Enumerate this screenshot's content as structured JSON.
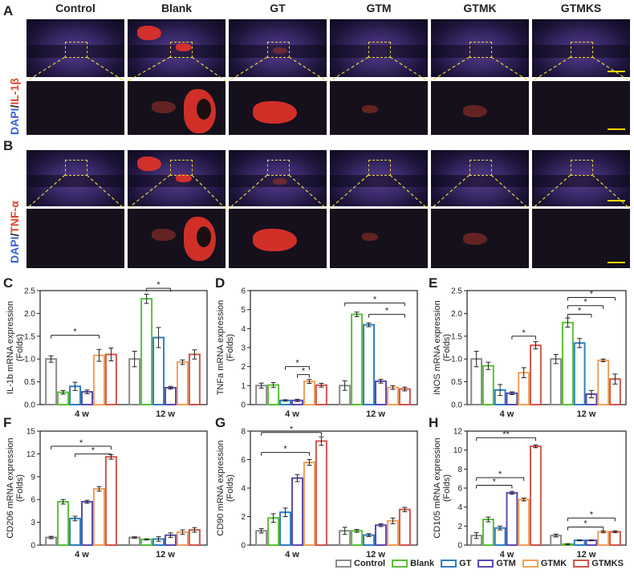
{
  "panel_letters": [
    "A",
    "B",
    "C",
    "D",
    "E",
    "F",
    "G",
    "H"
  ],
  "groups": [
    "Control",
    "Blank",
    "GT",
    "GTM",
    "GTMK",
    "GTMKS"
  ],
  "colors": [
    "#8a8a8a",
    "#5bbf3a",
    "#2f7fc1",
    "#5b4bb0",
    "#f0a05a",
    "#d0574f"
  ],
  "stain_a": {
    "dapi": "DAPI",
    "sep": "/",
    "marker": "IL-1β"
  },
  "stain_b": {
    "dapi": "DAPI",
    "sep": "/",
    "marker": "TNF-α"
  },
  "chart_data": [
    {
      "id": "C",
      "type": "bar",
      "ylabel": "IL-1b mRNA expression",
      "ylabel2": "(Folds)",
      "categories": [
        "4 w",
        "12 w"
      ],
      "ylim": [
        0,
        2.5
      ],
      "yticks": [
        0.0,
        0.5,
        1.0,
        1.5,
        2.0,
        2.5
      ],
      "ytick_labels": [
        "0.0",
        "0.5",
        "1.0",
        "1.5",
        "2.0",
        "2.5"
      ],
      "values": [
        [
          1.0,
          0.27,
          0.4,
          0.28,
          1.08,
          1.1
        ],
        [
          1.0,
          2.32,
          1.47,
          0.37,
          0.93,
          1.1
        ]
      ],
      "errors": [
        [
          0.07,
          0.04,
          0.09,
          0.04,
          0.13,
          0.14
        ],
        [
          0.17,
          0.1,
          0.22,
          0.03,
          0.05,
          0.1
        ]
      ],
      "sig": [
        {
          "cat": 0,
          "from": 0,
          "to": 4,
          "y": 1.52,
          "label": "*"
        },
        {
          "cat": 1,
          "from": 1,
          "to": 3,
          "y": 2.55,
          "label": "*"
        }
      ]
    },
    {
      "id": "D",
      "type": "bar",
      "ylabel": "TNFa mRNA expression",
      "ylabel2": "(Folds)",
      "categories": [
        "4 w",
        "12 w"
      ],
      "ylim": [
        0,
        6
      ],
      "yticks": [
        0,
        1,
        2,
        3,
        4,
        5,
        6
      ],
      "ytick_labels": [
        "0",
        "1",
        "2",
        "3",
        "4",
        "5",
        "6"
      ],
      "values": [
        [
          1.0,
          1.03,
          0.22,
          0.22,
          1.22,
          1.02
        ],
        [
          1.0,
          4.75,
          4.2,
          1.23,
          0.9,
          0.82
        ]
      ],
      "errors": [
        [
          0.13,
          0.13,
          0.04,
          0.06,
          0.1,
          0.1
        ],
        [
          0.25,
          0.12,
          0.1,
          0.1,
          0.1,
          0.1
        ]
      ],
      "sig": [
        {
          "cat": 0,
          "from": 2,
          "to": 4,
          "y": 2.0,
          "label": "*"
        },
        {
          "cat": 0,
          "from": 3,
          "to": 4,
          "y": 1.58,
          "label": "*"
        },
        {
          "cat": 1,
          "from": 0,
          "to": 5,
          "y": 5.35,
          "label": "*"
        },
        {
          "cat": 1,
          "from": 2,
          "to": 5,
          "y": 4.75,
          "label": "*"
        }
      ]
    },
    {
      "id": "E",
      "type": "bar",
      "ylabel": "iNOS mRNA expression",
      "ylabel2": "(Folds)",
      "categories": [
        "4 w",
        "12 w"
      ],
      "ylim": [
        0,
        2.5
      ],
      "yticks": [
        0.0,
        0.5,
        1.0,
        1.5,
        2.0,
        2.5
      ],
      "ytick_labels": [
        "0.0",
        "0.5",
        "1.0",
        "1.5",
        "2.0",
        "2.5"
      ],
      "values": [
        [
          1.0,
          0.85,
          0.32,
          0.25,
          0.7,
          1.3
        ],
        [
          1.0,
          1.8,
          1.35,
          0.23,
          0.97,
          0.56
        ]
      ],
      "errors": [
        [
          0.17,
          0.08,
          0.12,
          0.03,
          0.11,
          0.08
        ],
        [
          0.1,
          0.1,
          0.1,
          0.08,
          0.03,
          0.11
        ]
      ],
      "sig": [
        {
          "cat": 0,
          "from": 3,
          "to": 5,
          "y": 1.5,
          "label": "*"
        },
        {
          "cat": 1,
          "from": 1,
          "to": 3,
          "y": 1.98,
          "label": "*"
        },
        {
          "cat": 1,
          "from": 1,
          "to": 4,
          "y": 2.17,
          "label": "*"
        },
        {
          "cat": 1,
          "from": 1,
          "to": 5,
          "y": 2.35,
          "label": "*"
        }
      ]
    },
    {
      "id": "F",
      "type": "bar",
      "ylabel": "CD206 mRNA expression",
      "ylabel2": "(Folds)",
      "categories": [
        "4 w",
        "12 w"
      ],
      "ylim": [
        0,
        15
      ],
      "yticks": [
        0,
        3,
        6,
        9,
        12,
        15
      ],
      "ytick_labels": [
        "0",
        "3",
        "6",
        "9",
        "12",
        "15"
      ],
      "values": [
        [
          1.0,
          5.7,
          3.5,
          5.7,
          7.4,
          11.6
        ],
        [
          1.0,
          0.75,
          0.8,
          1.3,
          1.7,
          2.0
        ]
      ],
      "errors": [
        [
          0.15,
          0.3,
          0.3,
          0.2,
          0.3,
          0.3
        ],
        [
          0.1,
          0.08,
          0.3,
          0.3,
          0.3,
          0.3
        ]
      ],
      "sig": [
        {
          "cat": 0,
          "from": 0,
          "to": 5,
          "y": 13.0,
          "label": "*"
        },
        {
          "cat": 0,
          "from": 2,
          "to": 5,
          "y": 12.0,
          "label": "*"
        }
      ]
    },
    {
      "id": "G",
      "type": "bar",
      "ylabel": "CD90 mRNA expression",
      "ylabel2": "(Folds)",
      "categories": [
        "4 w",
        "12 w"
      ],
      "ylim": [
        0,
        8
      ],
      "yticks": [
        0,
        2,
        4,
        6,
        8
      ],
      "ytick_labels": [
        "0",
        "2",
        "4",
        "6",
        "8"
      ],
      "values": [
        [
          1.0,
          1.9,
          2.3,
          4.7,
          5.8,
          7.3
        ],
        [
          1.0,
          1.0,
          0.7,
          1.4,
          1.7,
          2.5
        ]
      ],
      "errors": [
        [
          0.15,
          0.3,
          0.3,
          0.25,
          0.2,
          0.3
        ],
        [
          0.25,
          0.1,
          0.1,
          0.1,
          0.2,
          0.15
        ]
      ],
      "sig": [
        {
          "cat": 0,
          "from": 0,
          "to": 4,
          "y": 6.5,
          "label": "*"
        },
        {
          "cat": 0,
          "from": 0,
          "to": 5,
          "y": 7.9,
          "label": "*"
        }
      ]
    },
    {
      "id": "H",
      "type": "bar",
      "ylabel": "CD105 mRNA expression",
      "ylabel2": "(Folds)",
      "categories": [
        "4 w",
        "12 w"
      ],
      "ylim": [
        0,
        12
      ],
      "yticks": [
        0,
        2,
        4,
        6,
        8,
        10,
        12
      ],
      "ytick_labels": [
        "0",
        "2",
        "4",
        "6",
        "8",
        "10",
        "12"
      ],
      "values": [
        [
          1.0,
          2.7,
          1.8,
          5.5,
          4.8,
          10.4
        ],
        [
          1.0,
          0.1,
          0.5,
          0.5,
          1.4,
          1.4
        ]
      ],
      "errors": [
        [
          0.3,
          0.25,
          0.2,
          0.15,
          0.15,
          0.15
        ],
        [
          0.15,
          0.05,
          0.05,
          0.05,
          0.1,
          0.1
        ]
      ],
      "sig": [
        {
          "cat": 0,
          "from": 0,
          "to": 3,
          "y": 6.3,
          "label": "*"
        },
        {
          "cat": 0,
          "from": 0,
          "to": 4,
          "y": 7.1,
          "label": "*"
        },
        {
          "cat": 0,
          "from": 0,
          "to": 5,
          "y": 11.3,
          "label": "**"
        },
        {
          "cat": 1,
          "from": 1,
          "to": 4,
          "y": 1.9,
          "label": "*"
        },
        {
          "cat": 1,
          "from": 1,
          "to": 5,
          "y": 2.85,
          "label": "*"
        }
      ]
    }
  ]
}
